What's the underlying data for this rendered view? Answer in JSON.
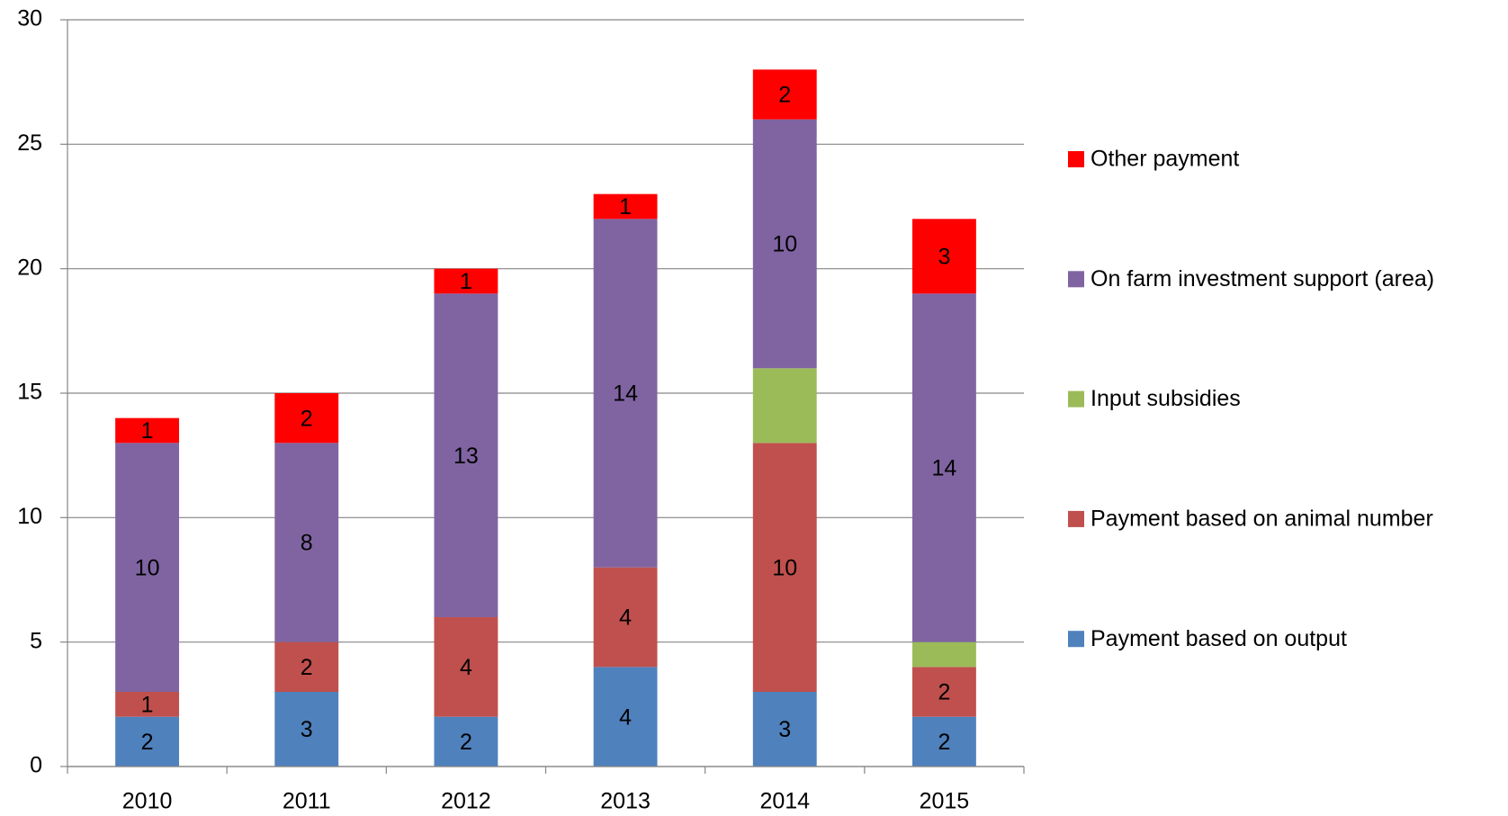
{
  "chart_data": {
    "type": "stacked_bar",
    "categories": [
      "2010",
      "2011",
      "2012",
      "2013",
      "2014",
      "2015"
    ],
    "series": [
      {
        "name": "Payment based on output",
        "color": "#4f81bd",
        "values": [
          2,
          3,
          2,
          4,
          3,
          2
        ],
        "data_labels": true
      },
      {
        "name": "Payment based on animal number",
        "color": "#c0504d",
        "values": [
          1,
          2,
          4,
          4,
          10,
          2
        ],
        "data_labels": true
      },
      {
        "name": "Input subsidies",
        "color": "#9bbb59",
        "values": [
          0,
          0,
          0,
          0,
          3,
          1
        ],
        "data_labels": false
      },
      {
        "name": "On farm investment support (area)",
        "color": "#8064a2",
        "values": [
          10,
          8,
          13,
          14,
          10,
          14
        ],
        "data_labels": true
      },
      {
        "name": "Other payment",
        "color": "#ff0000",
        "values": [
          1,
          2,
          1,
          1,
          2,
          3
        ],
        "data_labels": true
      }
    ],
    "ylim": [
      0,
      30
    ],
    "yticks": [
      0,
      5,
      10,
      15,
      20,
      25,
      30
    ],
    "grid": true,
    "legend": "right"
  }
}
